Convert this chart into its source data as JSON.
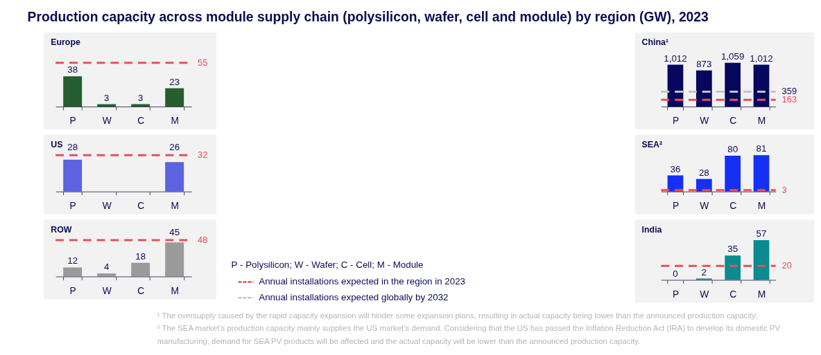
{
  "chart_data": [
    {
      "type": "other",
      "title": "Production capacity across module supply chain (polysilicon, wafer, cell and module) by region (GW), 2023",
      "annotations": [
        "P - Polysilicon; W - Wafer; C - Cell; M - Module",
        "Annual installations expected in the region in 2023",
        "Annual installations expected globally by 2032",
        "¹ The oversupply caused by the rapid capacity expansion will hinder some expansion plans, resulting in actual capacity being lower than the announced production capacity;",
        "² The SEA market’s production capacity mainly supplies the US market’s demand. Considering that the US has passed the Inflation Reduction Act (IRA) to develop its domestic PV manufacturing, demand for SEA PV products will be affected and the actual capacity will be lower than the announced production capacity."
      ]
    },
    {
      "type": "bar",
      "title": "Europe",
      "categories": [
        "P",
        "W",
        "C",
        "M"
      ],
      "values": [
        38,
        3,
        3,
        23
      ],
      "color": "#245e2f",
      "data_labels": true,
      "ref_lines": [
        {
          "axis": "y",
          "value": 55,
          "label": "55",
          "color": "#e8505a",
          "line_style": "dashed"
        }
      ]
    },
    {
      "type": "bar",
      "title": "US",
      "categories": [
        "P",
        "W",
        "C",
        "M"
      ],
      "values": [
        28,
        null,
        null,
        26
      ],
      "color": "#5b63e0",
      "data_labels": true,
      "ref_lines": [
        {
          "axis": "y",
          "value": 32,
          "label": "32",
          "color": "#e8505a",
          "line_style": "dashed"
        }
      ]
    },
    {
      "type": "bar",
      "title": "ROW",
      "categories": [
        "P",
        "W",
        "C",
        "M"
      ],
      "values": [
        12,
        4,
        18,
        45
      ],
      "color": "#9a9a9a",
      "data_labels": true,
      "ref_lines": [
        {
          "axis": "y",
          "value": 48,
          "label": "48",
          "color": "#e8505a",
          "line_style": "dashed"
        }
      ]
    },
    {
      "type": "bar",
      "title": "China¹",
      "categories": [
        "P",
        "W",
        "C",
        "M"
      ],
      "values": [
        1012,
        873,
        1059,
        1012
      ],
      "value_labels": [
        "1,012",
        "873",
        "1,059",
        "1,012"
      ],
      "color": "#07075e",
      "ref_lines": [
        {
          "axis": "y",
          "value": 359,
          "label": "359",
          "color": "#c4c4c4",
          "line_style": "dashed"
        },
        {
          "axis": "y",
          "value": 163,
          "label": "163",
          "color": "#e8505a",
          "line_style": "dashed"
        }
      ]
    },
    {
      "type": "bar",
      "title": "SEA²",
      "categories": [
        "P",
        "W",
        "C",
        "M"
      ],
      "values": [
        36,
        28,
        80,
        81
      ],
      "color": "#1530f5",
      "data_labels": true,
      "ref_lines": [
        {
          "axis": "y",
          "value": 3,
          "label": "3",
          "color": "#e8505a",
          "line_style": "dashed"
        }
      ]
    },
    {
      "type": "bar",
      "title": "India",
      "categories": [
        "P",
        "W",
        "C",
        "M"
      ],
      "values": [
        0,
        2,
        35,
        57
      ],
      "color": "#0a8b8f",
      "data_labels": true,
      "ref_lines": [
        {
          "axis": "y",
          "value": 20,
          "label": "20",
          "color": "#e8505a",
          "line_style": "dashed"
        }
      ]
    }
  ]
}
